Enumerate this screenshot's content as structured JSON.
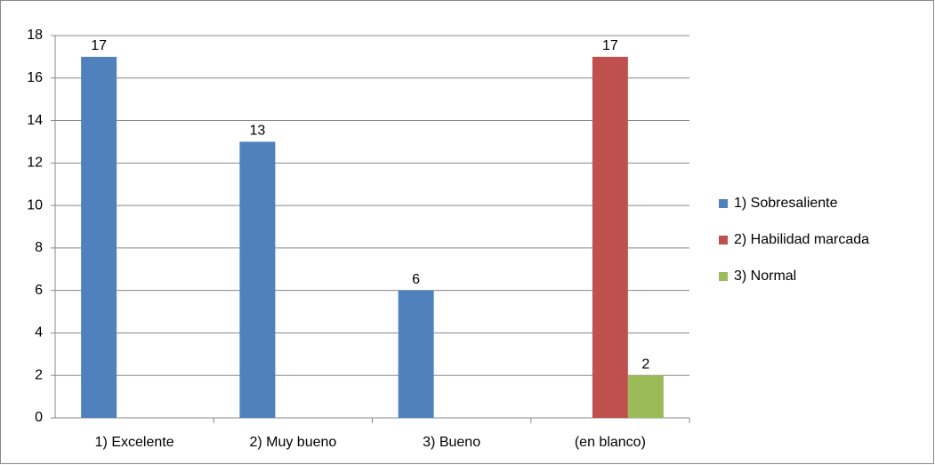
{
  "chart_data": {
    "type": "bar",
    "categories": [
      "1) Excelente",
      "2) Muy bueno",
      "3) Bueno",
      "(en blanco)"
    ],
    "series": [
      {
        "name": "1) Sobresaliente",
        "color": "#4f81bd",
        "values": [
          17,
          13,
          6,
          null
        ]
      },
      {
        "name": "2) Habilidad marcada",
        "color": "#c0504d",
        "values": [
          null,
          null,
          null,
          17
        ]
      },
      {
        "name": "3) Normal",
        "color": "#9bbb59",
        "values": [
          null,
          null,
          null,
          2
        ]
      }
    ],
    "ylim": [
      0,
      18
    ],
    "yticks": [
      0,
      2,
      4,
      6,
      8,
      10,
      12,
      14,
      16,
      18
    ],
    "grid": true,
    "legend": "right"
  }
}
